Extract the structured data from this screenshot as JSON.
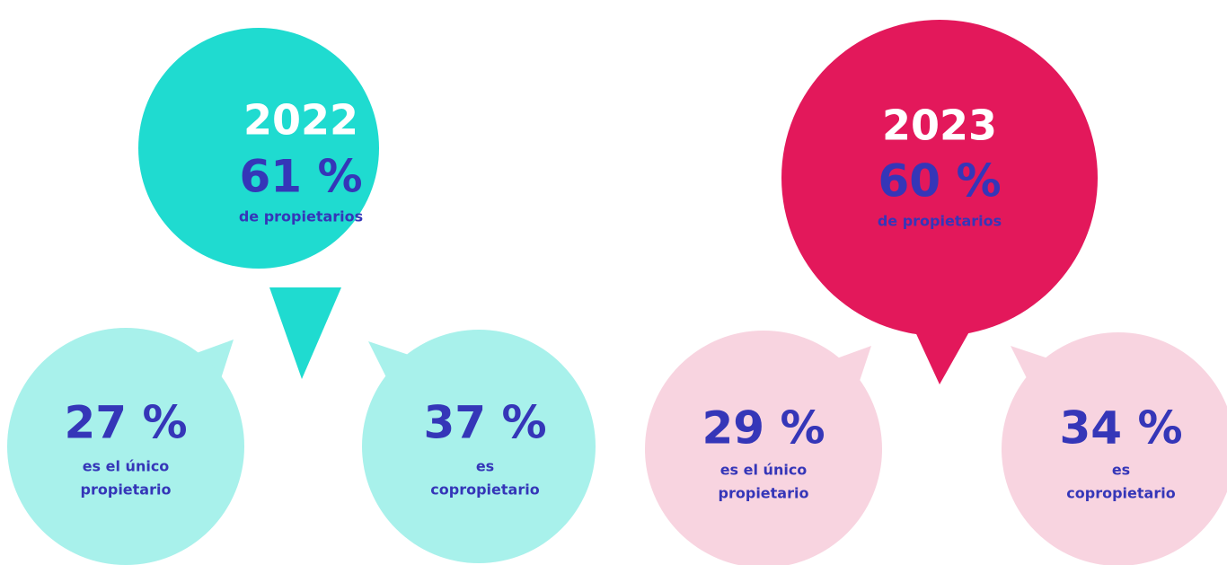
{
  "groups": [
    {
      "year": "2022",
      "percent": "61 %",
      "label": "de propietarios",
      "sub": [
        {
          "percent": "27 %",
          "label": [
            "es el único",
            "propietario"
          ]
        },
        {
          "percent": "37 %",
          "label": [
            "es",
            "copropietario"
          ]
        }
      ]
    },
    {
      "year": "2023",
      "percent": "60 %",
      "label": "de propietarios",
      "sub": [
        {
          "percent": "29 %",
          "label": [
            "es el único",
            "propietario"
          ]
        },
        {
          "percent": "34 %",
          "label": [
            "es",
            "copropietario"
          ]
        }
      ]
    }
  ]
}
